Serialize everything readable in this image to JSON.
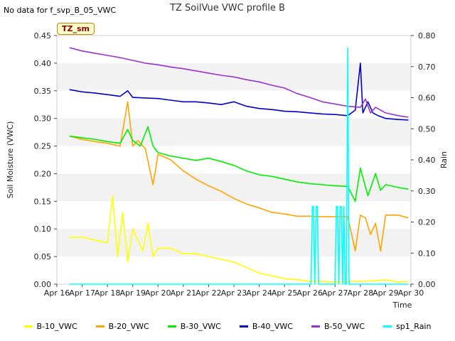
{
  "header": {
    "status": "No data for f_svp_B_05_VWC",
    "title": "TZ SoilVue VWC profile B",
    "badge": "TZ_sm"
  },
  "chart_data": {
    "type": "line",
    "title": "TZ SoilVue VWC profile B",
    "xlabel": "Time",
    "ylabel": "Soil Moisture (VWC)",
    "y2label": "Rain",
    "x_ticks": [
      "Apr 16",
      "Apr 17",
      "Apr 18",
      "Apr 19",
      "Apr 20",
      "Apr 21",
      "Apr 22",
      "Apr 23",
      "Apr 24",
      "Apr 25",
      "Apr 26",
      "Apr 27",
      "Apr 28",
      "Apr 29",
      "Apr 30"
    ],
    "xlim": [
      16,
      30
    ],
    "ylim": [
      0,
      0.45
    ],
    "y_ticks": [
      "0.00",
      "0.05",
      "0.10",
      "0.15",
      "0.20",
      "0.25",
      "0.30",
      "0.35",
      "0.40",
      "0.45"
    ],
    "y2lim": [
      0,
      0.8
    ],
    "y2_ticks": [
      "0.00",
      "0.10",
      "0.20",
      "0.30",
      "0.40",
      "0.50",
      "0.60",
      "0.70",
      "0.80"
    ],
    "grid": "horizontal bands",
    "legend": "bottom",
    "series": [
      {
        "name": "B-10_VWC",
        "color": "#ffff00",
        "axis": "left",
        "x": [
          16.5,
          17.0,
          17.5,
          18.0,
          18.2,
          18.4,
          18.6,
          18.8,
          19.0,
          19.2,
          19.4,
          19.6,
          19.8,
          20.0,
          20.5,
          21.0,
          21.5,
          22.0,
          22.5,
          23.0,
          23.5,
          24.0,
          24.5,
          25.0,
          25.5,
          26.0,
          26.5,
          27.0,
          27.5,
          28.0,
          28.5,
          29.0,
          29.5,
          29.9
        ],
        "y": [
          0.085,
          0.085,
          0.08,
          0.075,
          0.16,
          0.05,
          0.13,
          0.04,
          0.1,
          0.08,
          0.06,
          0.11,
          0.05,
          0.065,
          0.065,
          0.055,
          0.055,
          0.05,
          0.045,
          0.04,
          0.03,
          0.02,
          0.015,
          0.01,
          0.008,
          0.005,
          0.005,
          0.004,
          0.005,
          0.005,
          0.006,
          0.008,
          0.004,
          0.005
        ]
      },
      {
        "name": "B-20_VWC",
        "color": "#ffa500",
        "axis": "left",
        "x": [
          16.5,
          17.0,
          17.5,
          18.0,
          18.5,
          18.8,
          19.0,
          19.2,
          19.5,
          19.8,
          20.0,
          20.5,
          21.0,
          21.5,
          22.0,
          22.5,
          23.0,
          23.5,
          24.0,
          24.5,
          25.0,
          25.5,
          26.0,
          26.5,
          27.0,
          27.5,
          27.8,
          28.0,
          28.2,
          28.4,
          28.6,
          28.8,
          29.0,
          29.5,
          29.9
        ],
        "y": [
          0.268,
          0.262,
          0.258,
          0.255,
          0.25,
          0.33,
          0.25,
          0.26,
          0.245,
          0.18,
          0.235,
          0.225,
          0.205,
          0.19,
          0.178,
          0.168,
          0.155,
          0.145,
          0.138,
          0.13,
          0.127,
          0.123,
          0.123,
          0.122,
          0.122,
          0.122,
          0.06,
          0.125,
          0.12,
          0.09,
          0.11,
          0.06,
          0.125,
          0.125,
          0.12
        ]
      },
      {
        "name": "B-30_VWC",
        "color": "#00ee00",
        "axis": "left",
        "x": [
          16.5,
          17.0,
          17.5,
          18.0,
          18.5,
          18.8,
          19.0,
          19.3,
          19.6,
          19.8,
          20.0,
          20.5,
          21.0,
          21.5,
          22.0,
          22.5,
          23.0,
          23.5,
          24.0,
          24.5,
          25.0,
          25.5,
          26.0,
          26.5,
          27.0,
          27.5,
          27.8,
          28.0,
          28.3,
          28.6,
          28.8,
          29.0,
          29.5,
          29.9
        ],
        "y": [
          0.268,
          0.265,
          0.262,
          0.258,
          0.255,
          0.28,
          0.26,
          0.25,
          0.285,
          0.25,
          0.238,
          0.232,
          0.228,
          0.224,
          0.228,
          0.222,
          0.215,
          0.205,
          0.198,
          0.195,
          0.19,
          0.185,
          0.182,
          0.18,
          0.178,
          0.177,
          0.15,
          0.21,
          0.16,
          0.2,
          0.17,
          0.18,
          0.175,
          0.172
        ]
      },
      {
        "name": "B-40_VWC",
        "color": "#0000cc",
        "axis": "left",
        "x": [
          16.5,
          17.0,
          17.5,
          18.0,
          18.5,
          18.8,
          19.0,
          19.5,
          20.0,
          20.5,
          21.0,
          21.5,
          22.0,
          22.5,
          23.0,
          23.5,
          24.0,
          24.5,
          25.0,
          25.5,
          26.0,
          26.5,
          27.0,
          27.5,
          27.8,
          28.0,
          28.1,
          28.3,
          28.5,
          28.7,
          29.0,
          29.5,
          29.9
        ],
        "y": [
          0.352,
          0.348,
          0.346,
          0.343,
          0.34,
          0.35,
          0.338,
          0.337,
          0.336,
          0.333,
          0.33,
          0.33,
          0.328,
          0.325,
          0.33,
          0.322,
          0.318,
          0.316,
          0.313,
          0.312,
          0.31,
          0.308,
          0.307,
          0.305,
          0.315,
          0.4,
          0.31,
          0.33,
          0.31,
          0.305,
          0.3,
          0.298,
          0.297
        ]
      },
      {
        "name": "B-50_VWC",
        "color": "#9932cc",
        "axis": "left",
        "x": [
          16.5,
          17.0,
          17.5,
          18.0,
          18.5,
          19.0,
          19.5,
          20.0,
          20.5,
          21.0,
          21.5,
          22.0,
          22.5,
          23.0,
          23.5,
          24.0,
          24.5,
          25.0,
          25.5,
          26.0,
          26.5,
          27.0,
          27.5,
          28.0,
          28.2,
          28.4,
          28.6,
          29.0,
          29.5,
          29.9
        ],
        "y": [
          0.428,
          0.422,
          0.418,
          0.414,
          0.41,
          0.405,
          0.4,
          0.397,
          0.393,
          0.39,
          0.386,
          0.382,
          0.378,
          0.375,
          0.37,
          0.366,
          0.36,
          0.355,
          0.345,
          0.338,
          0.33,
          0.326,
          0.322,
          0.32,
          0.335,
          0.31,
          0.32,
          0.31,
          0.305,
          0.302
        ]
      },
      {
        "name": "sp1_Rain",
        "color": "#00ffff",
        "axis": "right",
        "x": [
          16.5,
          26.05,
          26.1,
          26.15,
          26.2,
          26.25,
          26.3,
          26.35,
          26.4,
          27.0,
          27.05,
          27.1,
          27.15,
          27.2,
          27.25,
          27.3,
          27.35,
          27.4,
          27.45,
          27.5,
          27.55,
          27.6,
          29.9
        ],
        "y": [
          0,
          0,
          0.25,
          0.25,
          0,
          0.25,
          0.25,
          0,
          0,
          0,
          0.25,
          0.25,
          0,
          0.25,
          0.25,
          0,
          0.25,
          0,
          0,
          0.76,
          0,
          0,
          0
        ]
      }
    ]
  }
}
